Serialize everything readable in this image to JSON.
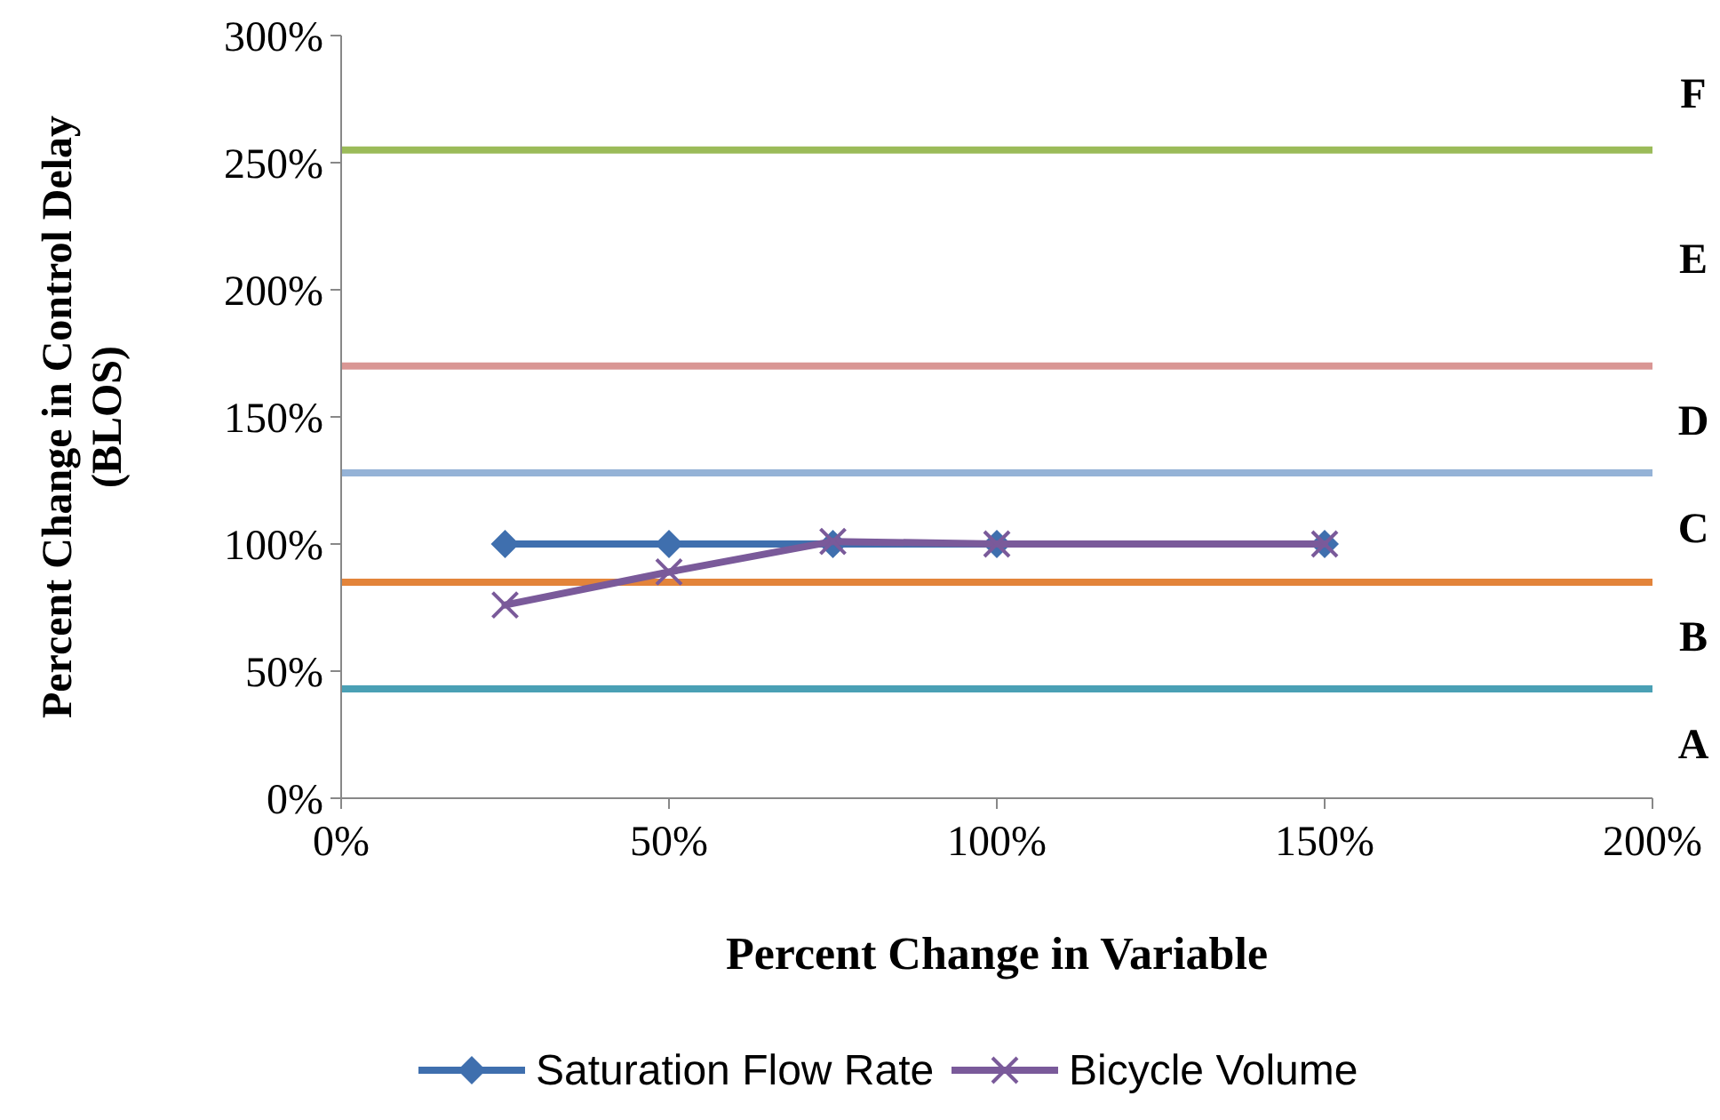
{
  "chart_data": {
    "type": "line",
    "xlabel": "Percent Change in Variable",
    "ylabel": "Percent Change in Control Delay\n(BLOS)",
    "xlim": [
      0,
      200
    ],
    "xticks": [
      {
        "value": 0,
        "label": "0%"
      },
      {
        "value": 50,
        "label": "50%"
      },
      {
        "value": 100,
        "label": "100%"
      },
      {
        "value": 150,
        "label": "150%"
      },
      {
        "value": 200,
        "label": "200%"
      }
    ],
    "ylim": [
      0,
      300
    ],
    "yticks": [
      {
        "value": 0,
        "label": "0%"
      },
      {
        "value": 50,
        "label": "50%"
      },
      {
        "value": 100,
        "label": "100%"
      },
      {
        "value": 150,
        "label": "150%"
      },
      {
        "value": 200,
        "label": "200%"
      },
      {
        "value": 250,
        "label": "250%"
      },
      {
        "value": 300,
        "label": "300%"
      }
    ],
    "series": [
      {
        "name": "Saturation Flow Rate",
        "color": "#3f6fae",
        "marker": "diamond",
        "x": [
          25,
          50,
          75,
          100,
          150
        ],
        "values": [
          100,
          100,
          100,
          100,
          100
        ]
      },
      {
        "name": "Bicycle Volume",
        "color": "#7a5a9a",
        "marker": "cross",
        "x": [
          25,
          50,
          75,
          100,
          150
        ],
        "values": [
          76,
          89,
          101,
          100,
          100
        ]
      }
    ],
    "ref_lines": [
      {
        "axis": "y",
        "value": 43,
        "color": "#4aa0b5"
      },
      {
        "axis": "y",
        "value": 85,
        "color": "#e3843a"
      },
      {
        "axis": "y",
        "value": 128,
        "color": "#95b3d7"
      },
      {
        "axis": "y",
        "value": 170,
        "color": "#d99694"
      },
      {
        "axis": "y",
        "value": 255,
        "color": "#9bbb59"
      }
    ],
    "annotations": [
      "A",
      "B",
      "C",
      "D",
      "E",
      "F"
    ],
    "legend": "bottom",
    "grid": false
  }
}
